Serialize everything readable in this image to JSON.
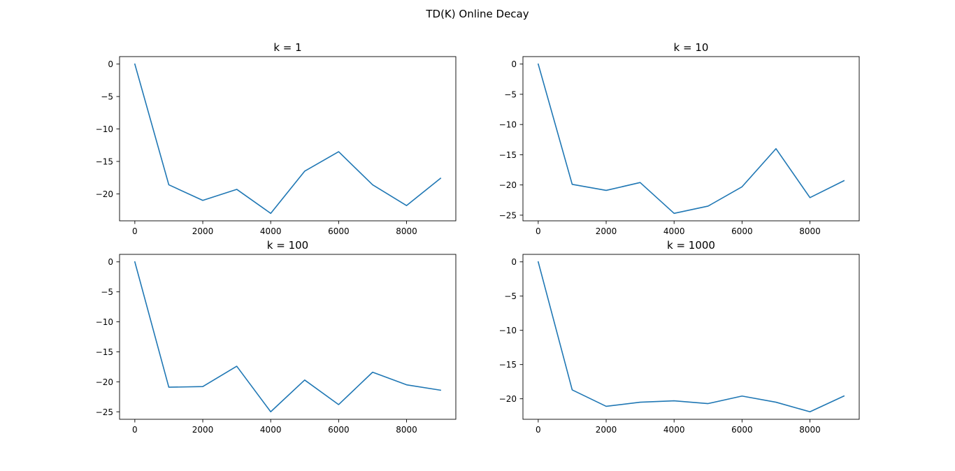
{
  "figure": {
    "suptitle": "TD(K) Online Decay"
  },
  "chart_data": [
    {
      "type": "line",
      "title": "k = 1",
      "xlabel": "",
      "ylabel": "",
      "x": [
        0,
        1000,
        2000,
        3000,
        4000,
        5000,
        6000,
        7000,
        8000,
        9000
      ],
      "series": [
        {
          "values": [
            0,
            -18.6,
            -21.0,
            -19.3,
            -23.0,
            -16.5,
            -13.5,
            -18.6,
            -21.8,
            -17.6
          ],
          "color": "#1f77b4"
        }
      ],
      "xlim": [
        -450,
        9450
      ],
      "ylim": [
        -24.15,
        1.15
      ],
      "xticks": [
        0,
        2000,
        4000,
        6000,
        8000
      ],
      "yticks": [
        0,
        -5,
        -10,
        -15,
        -20
      ],
      "grid": false
    },
    {
      "type": "line",
      "title": "k = 10",
      "xlabel": "",
      "ylabel": "",
      "x": [
        0,
        1000,
        2000,
        3000,
        4000,
        5000,
        6000,
        7000,
        8000,
        9000
      ],
      "series": [
        {
          "values": [
            0,
            -19.9,
            -20.9,
            -19.6,
            -24.7,
            -23.5,
            -20.3,
            -14.0,
            -22.1,
            -19.3
          ],
          "color": "#1f77b4"
        }
      ],
      "xlim": [
        -450,
        9450
      ],
      "ylim": [
        -25.935,
        1.235
      ],
      "xticks": [
        0,
        2000,
        4000,
        6000,
        8000
      ],
      "yticks": [
        0,
        -5,
        -10,
        -15,
        -20,
        -25
      ],
      "grid": false
    },
    {
      "type": "line",
      "title": "k = 100",
      "xlabel": "",
      "ylabel": "",
      "x": [
        0,
        1000,
        2000,
        3000,
        4000,
        5000,
        6000,
        7000,
        8000,
        9000
      ],
      "series": [
        {
          "values": [
            0,
            -20.9,
            -20.8,
            -17.4,
            -25.0,
            -19.7,
            -23.8,
            -18.4,
            -20.5,
            -21.4
          ],
          "color": "#1f77b4"
        }
      ],
      "xlim": [
        -450,
        9450
      ],
      "ylim": [
        -26.25,
        1.25
      ],
      "xticks": [
        0,
        2000,
        4000,
        6000,
        8000
      ],
      "yticks": [
        0,
        -5,
        -10,
        -15,
        -20,
        -25
      ],
      "grid": false
    },
    {
      "type": "line",
      "title": "k = 1000",
      "xlabel": "",
      "ylabel": "",
      "x": [
        0,
        1000,
        2000,
        3000,
        4000,
        5000,
        6000,
        7000,
        8000,
        9000
      ],
      "series": [
        {
          "values": [
            0,
            -18.7,
            -21.1,
            -20.5,
            -20.3,
            -20.7,
            -19.6,
            -20.5,
            -21.9,
            -19.6
          ],
          "color": "#1f77b4"
        }
      ],
      "xlim": [
        -450,
        9450
      ],
      "ylim": [
        -22.995,
        1.095
      ],
      "xticks": [
        0,
        2000,
        4000,
        6000,
        8000
      ],
      "yticks": [
        0,
        -5,
        -10,
        -15,
        -20
      ],
      "grid": false
    }
  ]
}
